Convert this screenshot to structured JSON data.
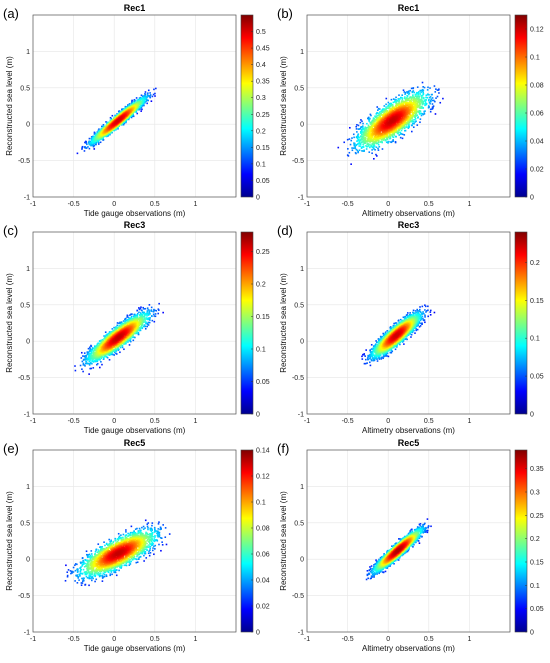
{
  "chart_data": [
    {
      "type": "heatmap",
      "panel": "(a)",
      "title": "Rec1",
      "xlabel": "Tide gauge observations (m)",
      "ylabel": "Reconstructed sea level (m)",
      "xlim": [
        -1,
        1.5
      ],
      "ylim": [
        -1,
        1.5
      ],
      "xticks": [
        "-1",
        "-0.5",
        "0",
        "0.5",
        "1"
      ],
      "yticks": [
        "-1",
        "-0.5",
        "0",
        "0.5",
        "1"
      ],
      "grid": true,
      "colorbar": {
        "range": [
          0,
          0.55
        ],
        "ticks": [
          "0",
          "0.05",
          "0.1",
          "0.15",
          "0.2",
          "0.25",
          "0.3",
          "0.35",
          "0.4",
          "0.45",
          "0.5"
        ]
      },
      "density": {
        "center": [
          0.05,
          0.05
        ],
        "x_range": [
          -0.6,
          1.2
        ],
        "spread_along": 0.3,
        "spread_across": 0.045,
        "slope": 0.93,
        "peak": 0.5
      }
    },
    {
      "type": "heatmap",
      "panel": "(b)",
      "title": "Rec1",
      "xlabel": "Altimetry observations (m)",
      "ylabel": "Reconstructed sea level (m)",
      "xlim": [
        -1,
        1.5
      ],
      "ylim": [
        -1,
        1.5
      ],
      "xticks": [
        "-1",
        "-0.5",
        "0",
        "0.5",
        "1"
      ],
      "yticks": [
        "-1",
        "-0.5",
        "0",
        "0.5",
        "1"
      ],
      "grid": true,
      "colorbar": {
        "range": [
          0,
          0.13
        ],
        "ticks": [
          "0",
          "0.02",
          "0.04",
          "0.06",
          "0.08",
          "0.1",
          "0.12"
        ]
      },
      "density": {
        "center": [
          0.05,
          0.05
        ],
        "x_range": [
          -0.7,
          1.3
        ],
        "spread_along": 0.36,
        "spread_across": 0.13,
        "slope": 0.85,
        "peak": 0.12
      }
    },
    {
      "type": "heatmap",
      "panel": "(c)",
      "title": "Rec3",
      "xlabel": "Tide gauge observations (m)",
      "ylabel": "Reconstructed sea level (m)",
      "xlim": [
        -1,
        1.5
      ],
      "ylim": [
        -1,
        1.5
      ],
      "xticks": [
        "-1",
        "-0.5",
        "0",
        "0.5",
        "1"
      ],
      "yticks": [
        "-1",
        "-0.5",
        "0",
        "0.5",
        "1"
      ],
      "grid": true,
      "colorbar": {
        "range": [
          0,
          0.28
        ],
        "ticks": [
          "0",
          "0.05",
          "0.1",
          "0.15",
          "0.2",
          "0.25"
        ]
      },
      "density": {
        "center": [
          0.05,
          0.05
        ],
        "x_range": [
          -0.6,
          1.2
        ],
        "spread_along": 0.32,
        "spread_across": 0.08,
        "slope": 0.88,
        "peak": 0.26
      }
    },
    {
      "type": "heatmap",
      "panel": "(d)",
      "title": "Rec3",
      "xlabel": "Altimetry observations (m)",
      "ylabel": "Reconstructed sea level (m)",
      "xlim": [
        -1,
        1.5
      ],
      "ylim": [
        -1,
        1.5
      ],
      "xticks": [
        "-1",
        "-0.5",
        "0",
        "0.5",
        "1"
      ],
      "yticks": [
        "-1",
        "-0.5",
        "0",
        "0.5",
        "1"
      ],
      "grid": true,
      "colorbar": {
        "range": [
          0,
          0.24
        ],
        "ticks": [
          "0",
          "0.05",
          "0.1",
          "0.15",
          "0.2"
        ]
      },
      "density": {
        "center": [
          0.1,
          0.08
        ],
        "x_range": [
          -0.45,
          0.85
        ],
        "spread_along": 0.27,
        "spread_across": 0.07,
        "slope": 1.0,
        "peak": 0.22
      }
    },
    {
      "type": "heatmap",
      "panel": "(e)",
      "title": "Rec5",
      "xlabel": "Tide gauge observations (m)",
      "ylabel": "Reconstructed sea level (m)",
      "xlim": [
        -1,
        1.5
      ],
      "ylim": [
        -1,
        1.5
      ],
      "xticks": [
        "-1",
        "-0.5",
        "0",
        "0.5",
        "1"
      ],
      "yticks": [
        "-1",
        "-0.5",
        "0",
        "0.5",
        "1"
      ],
      "grid": true,
      "colorbar": {
        "range": [
          0,
          0.14
        ],
        "ticks": [
          "0",
          "0.02",
          "0.04",
          "0.06",
          "0.08",
          "0.1",
          "0.12",
          "0.14"
        ]
      },
      "density": {
        "center": [
          0.05,
          0.08
        ],
        "x_range": [
          -0.6,
          1.2
        ],
        "spread_along": 0.35,
        "spread_across": 0.12,
        "slope": 0.6,
        "peak": 0.13
      }
    },
    {
      "type": "heatmap",
      "panel": "(f)",
      "title": "Rec5",
      "xlabel": "Altimetry observations (m)",
      "ylabel": "Reconstructed sea level (m)",
      "xlim": [
        -1,
        1.5
      ],
      "ylim": [
        -1,
        1.5
      ],
      "xticks": [
        "-1",
        "-0.5",
        "0",
        "0.5",
        "1"
      ],
      "yticks": [
        "-1",
        "-0.5",
        "0",
        "0.5",
        "1"
      ],
      "grid": true,
      "colorbar": {
        "range": [
          0,
          0.39
        ],
        "ticks": [
          "0",
          "0.05",
          "0.1",
          "0.15",
          "0.2",
          "0.25",
          "0.3",
          "0.35"
        ]
      },
      "density": {
        "center": [
          0.12,
          0.12
        ],
        "x_range": [
          -0.45,
          0.85
        ],
        "spread_along": 0.27,
        "spread_across": 0.05,
        "slope": 1.0,
        "peak": 0.37
      }
    }
  ]
}
